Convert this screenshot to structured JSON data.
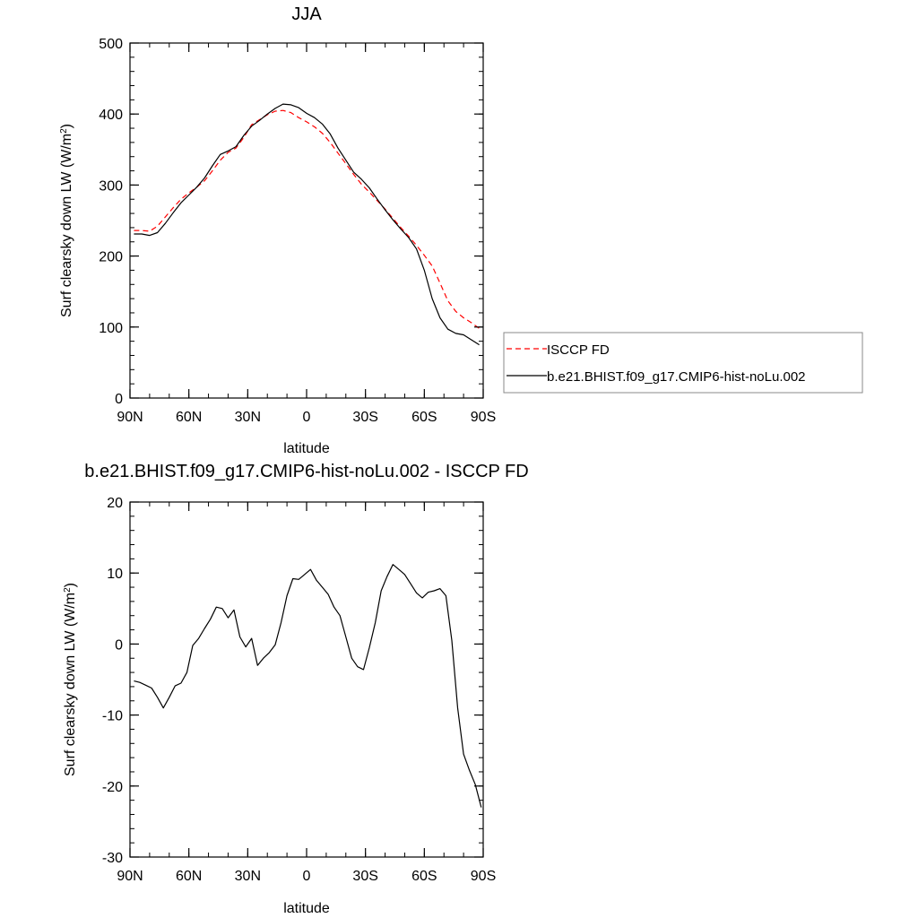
{
  "chart_data": [
    {
      "type": "line",
      "title": "JJA",
      "xlabel": "latitude",
      "ylabel_main": "Surf clearsky down LW (W/m",
      "ylabel_sup": "2",
      "ylabel_end": ")",
      "xlim": [
        -90,
        90
      ],
      "ylim": [
        0,
        500
      ],
      "x_ticks": [
        {
          "value": -90,
          "label": "90N"
        },
        {
          "value": -60,
          "label": "60N"
        },
        {
          "value": -30,
          "label": "30N"
        },
        {
          "value": 0,
          "label": "0"
        },
        {
          "value": 30,
          "label": "30S"
        },
        {
          "value": 60,
          "label": "60S"
        },
        {
          "value": 90,
          "label": "90S"
        }
      ],
      "y_ticks": [
        {
          "value": 0,
          "label": "0"
        },
        {
          "value": 100,
          "label": "100"
        },
        {
          "value": 200,
          "label": "200"
        },
        {
          "value": 300,
          "label": "300"
        },
        {
          "value": 400,
          "label": "400"
        },
        {
          "value": 500,
          "label": "500"
        }
      ],
      "legend": "right",
      "series": [
        {
          "name": "ISCCP FD",
          "color": "#ff0000",
          "style": "dashed",
          "x": [
            -88,
            -84,
            -80,
            -76,
            -72,
            -68,
            -64,
            -60,
            -56,
            -52,
            -48,
            -44,
            -40,
            -36,
            -32,
            -28,
            -24,
            -20,
            -16,
            -12,
            -8,
            -4,
            0,
            4,
            8,
            12,
            16,
            20,
            24,
            28,
            32,
            36,
            40,
            44,
            48,
            52,
            56,
            60,
            64,
            68,
            72,
            76,
            80,
            84,
            88
          ],
          "y": [
            236,
            236,
            235,
            242,
            255,
            268,
            280,
            289,
            297,
            306,
            320,
            335,
            346,
            352,
            367,
            385,
            392,
            399,
            404,
            405,
            402,
            395,
            389,
            382,
            373,
            360,
            345,
            330,
            315,
            301,
            290,
            278,
            266,
            253,
            240,
            228,
            215,
            201,
            186,
            162,
            137,
            122,
            113,
            106,
            98
          ]
        },
        {
          "name": "b.e21.BHIST.f09_g17.CMIP6-hist-noLu.002",
          "color": "#000000",
          "style": "solid",
          "x": [
            -88,
            -84,
            -80,
            -76,
            -72,
            -68,
            -64,
            -60,
            -56,
            -52,
            -48,
            -44,
            -40,
            -36,
            -32,
            -28,
            -24,
            -20,
            -16,
            -12,
            -8,
            -4,
            0,
            4,
            8,
            12,
            16,
            20,
            24,
            28,
            32,
            36,
            40,
            44,
            48,
            52,
            56,
            60,
            64,
            68,
            72,
            76,
            80,
            84,
            88
          ],
          "y": [
            231,
            231,
            229,
            233,
            246,
            261,
            275,
            286,
            297,
            310,
            327,
            343,
            348,
            354,
            370,
            383,
            391,
            400,
            408,
            414,
            413,
            409,
            401,
            395,
            386,
            372,
            352,
            335,
            318,
            308,
            296,
            280,
            265,
            251,
            238,
            226,
            210,
            180,
            140,
            113,
            97,
            91,
            89,
            82,
            75
          ]
        }
      ]
    },
    {
      "type": "line",
      "title": "b.e21.BHIST.f09_g17.CMIP6-hist-noLu.002 - ISCCP FD",
      "xlabel": "latitude",
      "ylabel_main": "Surf clearsky down LW (W/m",
      "ylabel_sup": "2",
      "ylabel_end": ")",
      "xlim": [
        -90,
        90
      ],
      "ylim": [
        -30,
        20
      ],
      "x_ticks": [
        {
          "value": -90,
          "label": "90N"
        },
        {
          "value": -60,
          "label": "60N"
        },
        {
          "value": -30,
          "label": "30N"
        },
        {
          "value": 0,
          "label": "0"
        },
        {
          "value": 30,
          "label": "30S"
        },
        {
          "value": 60,
          "label": "60S"
        },
        {
          "value": 90,
          "label": "90S"
        }
      ],
      "y_ticks": [
        {
          "value": -30,
          "label": "-30"
        },
        {
          "value": -20,
          "label": "-20"
        },
        {
          "value": -10,
          "label": "-10"
        },
        {
          "value": 0,
          "label": "0"
        },
        {
          "value": 10,
          "label": "10"
        },
        {
          "value": 20,
          "label": "20"
        }
      ],
      "series": [
        {
          "color": "#000000",
          "style": "solid",
          "x": [
            -88,
            -85,
            -82,
            -79,
            -76,
            -73,
            -70,
            -67,
            -64,
            -61,
            -58,
            -55,
            -52,
            -49,
            -46,
            -43,
            -40,
            -37,
            -34,
            -31,
            -28,
            -25,
            -22,
            -19,
            -16,
            -13,
            -10,
            -7,
            -4,
            -1,
            2,
            5,
            8,
            11,
            14,
            17,
            20,
            23,
            26,
            29,
            32,
            35,
            38,
            41,
            44,
            47,
            50,
            53,
            56,
            59,
            62,
            65,
            68,
            71,
            74,
            77,
            80,
            83,
            86,
            89
          ],
          "y": [
            -5.2,
            -5.4,
            -5.8,
            -6.2,
            -7.5,
            -9.0,
            -7.5,
            -5.9,
            -5.5,
            -4.0,
            -0.2,
            0.8,
            2.2,
            3.5,
            5.2,
            5.0,
            3.7,
            4.8,
            1.0,
            -0.4,
            0.8,
            -3.0,
            -2.0,
            -1.2,
            -0.1,
            3.0,
            6.8,
            9.2,
            9.1,
            9.8,
            10.5,
            9.0,
            8.0,
            7.0,
            5.2,
            4.0,
            1.0,
            -2.0,
            -3.2,
            -3.6,
            -0.5,
            3.0,
            7.5,
            9.5,
            11.2,
            10.5,
            9.8,
            8.5,
            7.2,
            6.5,
            7.3,
            7.5,
            7.8,
            6.8,
            0.5,
            -9.0,
            -15.5,
            -17.8,
            -19.8,
            -23.0
          ]
        }
      ]
    }
  ]
}
